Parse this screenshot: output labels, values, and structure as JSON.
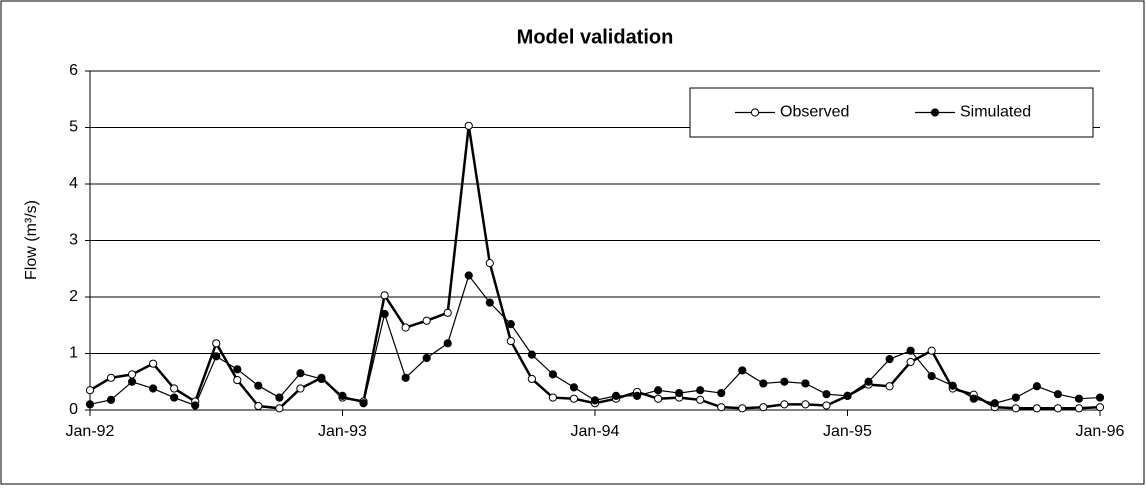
{
  "chart_data": {
    "type": "line",
    "title": "Model validation",
    "y_label": "Flow (m³/s)",
    "categories": [
      "Jan-92",
      null,
      null,
      null,
      null,
      null,
      null,
      null,
      null,
      null,
      null,
      null,
      "Jan-93",
      null,
      null,
      null,
      null,
      null,
      null,
      null,
      null,
      null,
      null,
      null,
      "Jan-94",
      null,
      null,
      null,
      null,
      null,
      null,
      null,
      null,
      null,
      null,
      null,
      "Jan-95",
      null,
      null,
      null,
      null,
      null,
      null,
      null,
      null,
      null,
      null,
      null,
      "Jan-96"
    ],
    "series": [
      {
        "name": "Observed",
        "color": "#000000",
        "marker": "open",
        "values": [
          0.35,
          0.57,
          0.63,
          0.82,
          0.38,
          0.15,
          1.18,
          0.53,
          0.07,
          0.03,
          0.38,
          0.57,
          0.22,
          0.15,
          2.03,
          1.46,
          1.58,
          1.72,
          5.03,
          2.6,
          1.22,
          0.55,
          0.22,
          0.2,
          0.12,
          0.2,
          0.32,
          0.2,
          0.22,
          0.18,
          0.05,
          0.03,
          0.05,
          0.1,
          0.1,
          0.08,
          0.25,
          0.45,
          0.42,
          0.85,
          1.05,
          0.38,
          0.27,
          0.05,
          0.03,
          0.03,
          0.03,
          0.03,
          0.05
        ]
      },
      {
        "name": "Simulated",
        "color": "#000000",
        "marker": "filled",
        "values": [
          0.1,
          0.18,
          0.5,
          0.38,
          0.22,
          0.08,
          0.95,
          0.72,
          0.43,
          0.22,
          0.65,
          0.55,
          0.25,
          0.12,
          1.7,
          0.57,
          0.92,
          1.18,
          2.38,
          1.9,
          1.52,
          0.98,
          0.63,
          0.4,
          0.17,
          0.25,
          0.25,
          0.35,
          0.3,
          0.35,
          0.3,
          0.7,
          0.47,
          0.5,
          0.47,
          0.28,
          0.25,
          0.5,
          0.9,
          1.05,
          0.6,
          0.43,
          0.2,
          0.12,
          0.22,
          0.42,
          0.28,
          0.2,
          0.22
        ]
      }
    ],
    "ylim": [
      0,
      6
    ],
    "yticks": [
      0,
      1,
      2,
      3,
      4,
      5,
      6
    ],
    "grid": true,
    "legend": "upper-right"
  }
}
